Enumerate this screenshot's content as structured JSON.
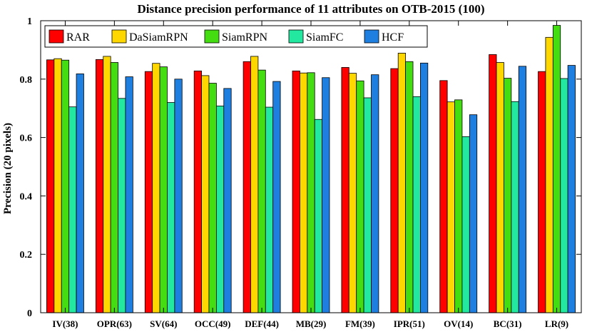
{
  "chart_data": {
    "type": "bar",
    "title": "Distance precision performance of 11 attributes on OTB-2015 (100)",
    "xlabel": "",
    "ylabel": "Precision (20 pixels)",
    "ylim": [
      0,
      1
    ],
    "yticks": [
      "0",
      "0.2",
      "0.4",
      "0.6",
      "0.8",
      "1"
    ],
    "ytick_values": [
      0,
      0.2,
      0.4,
      0.6,
      0.8,
      1
    ],
    "grid": false,
    "legend_position": "top-left",
    "categories": [
      "IV(38)",
      "OPR(63)",
      "SV(64)",
      "OCC(49)",
      "DEF(44)",
      "MB(29)",
      "FM(39)",
      "IPR(51)",
      "OV(14)",
      "BC(31)",
      "LR(9)"
    ],
    "series": [
      {
        "name": "RAR",
        "color": "#ff0000",
        "values": [
          0.866,
          0.867,
          0.826,
          0.828,
          0.86,
          0.828,
          0.84,
          0.836,
          0.795,
          0.884,
          0.826
        ]
      },
      {
        "name": "DaSiamRPN",
        "color": "#ffd700",
        "values": [
          0.87,
          0.878,
          0.854,
          0.812,
          0.878,
          0.821,
          0.82,
          0.889,
          0.722,
          0.857,
          0.943
        ]
      },
      {
        "name": "SiamRPN",
        "color": "#44dd11",
        "values": [
          0.865,
          0.857,
          0.842,
          0.786,
          0.831,
          0.822,
          0.794,
          0.86,
          0.729,
          0.803,
          0.984
        ]
      },
      {
        "name": "SiamFC",
        "color": "#22e8a0",
        "values": [
          0.705,
          0.734,
          0.72,
          0.708,
          0.704,
          0.662,
          0.736,
          0.74,
          0.603,
          0.723,
          0.802
        ]
      },
      {
        "name": "HCF",
        "color": "#1f7fe0",
        "values": [
          0.818,
          0.808,
          0.8,
          0.768,
          0.792,
          0.805,
          0.815,
          0.855,
          0.678,
          0.844,
          0.847
        ]
      }
    ]
  }
}
